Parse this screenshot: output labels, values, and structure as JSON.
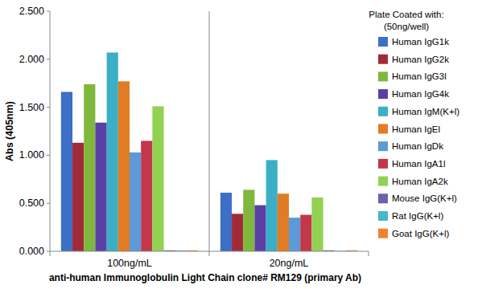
{
  "chart_data": {
    "type": "bar",
    "x_label": "anti-human Immunoglobulin Light Chain clone# RM129 (primary Ab)",
    "y_label": "Abs (405nm)",
    "legend_title": [
      "Plate Coated with:",
      "(50ng/well)"
    ],
    "legend": "right",
    "grid": false,
    "categories": [
      "100ng/mL",
      "20ng/mL"
    ],
    "ylim": [
      0,
      2.5
    ],
    "yticks": [
      {
        "value": 0,
        "label": "0.000"
      },
      {
        "value": 0.5,
        "label": "0.500"
      },
      {
        "value": 1,
        "label": "1.000"
      },
      {
        "value": 1.5,
        "label": "1.500"
      },
      {
        "value": 2,
        "label": "2.000"
      },
      {
        "value": 2.5,
        "label": "2.500"
      }
    ],
    "series": [
      {
        "name": "Human IgG1k",
        "color": "#3c6fc6",
        "values": [
          1.66,
          0.61
        ]
      },
      {
        "name": "Human IgG2k",
        "color": "#a02b36",
        "values": [
          1.13,
          0.39
        ]
      },
      {
        "name": "Human IgG3l",
        "color": "#7fb83c",
        "values": [
          1.74,
          0.64
        ]
      },
      {
        "name": "Human IgG4k",
        "color": "#5a40a6",
        "values": [
          1.34,
          0.48
        ]
      },
      {
        "name": "Human IgM(K+l)",
        "color": "#3aafc6",
        "values": [
          2.07,
          0.95
        ]
      },
      {
        "name": "Human IgEl",
        "color": "#e17b24",
        "values": [
          1.77,
          0.6
        ]
      },
      {
        "name": "Human IgDk",
        "color": "#5b9ad6",
        "values": [
          1.03,
          0.35
        ]
      },
      {
        "name": "Human IgA1l",
        "color": "#c2384a",
        "values": [
          1.15,
          0.38
        ]
      },
      {
        "name": "Human IgA2k",
        "color": "#93d152",
        "values": [
          1.51,
          0.56
        ]
      },
      {
        "name": "Mouse IgG(K+l)",
        "color": "#6f5fa8",
        "values": [
          0.01,
          0.01
        ]
      },
      {
        "name": "Rat IgG(K+l)",
        "color": "#43b9c9",
        "values": [
          0.01,
          0.005
        ]
      },
      {
        "name": "Goat IgG(K+l)",
        "color": "#f0832f",
        "values": [
          0.01,
          0.01
        ]
      }
    ]
  }
}
